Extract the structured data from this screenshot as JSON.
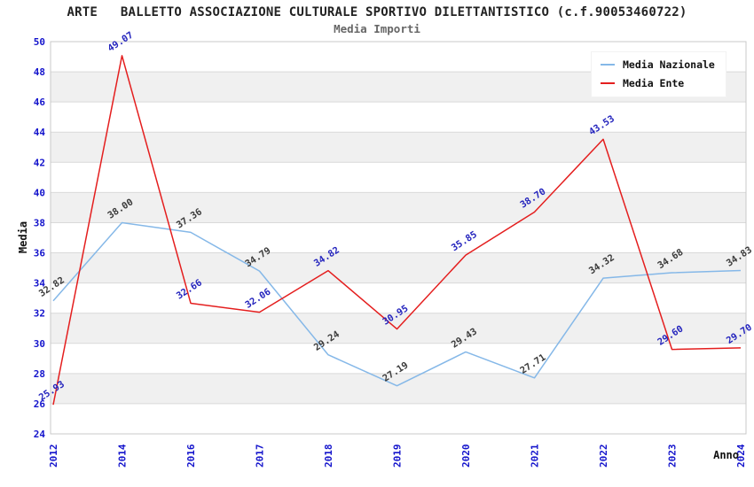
{
  "page": {
    "title": "ARTE   BALLETTO ASSOCIAZIONE CULTURALE SPORTIVO DILETTANTISTICO (c.f.90053460722)",
    "subtitle": "Media Importi"
  },
  "chart_data": {
    "type": "line",
    "title": "ARTE   BALLETTO ASSOCIAZIONE CULTURALE SPORTIVO DILETTANTISTICO (c.f.90053460722)",
    "subtitle": "Media Importi",
    "xlabel": "Anno",
    "ylabel": "Media",
    "ylim": [
      24,
      50
    ],
    "yticks": [
      24,
      26,
      28,
      30,
      32,
      34,
      36,
      38,
      40,
      42,
      44,
      46,
      48,
      50
    ],
    "categories": [
      "2012",
      "2014",
      "2016",
      "2017",
      "2018",
      "2019",
      "2020",
      "2021",
      "2022",
      "2023",
      "2024"
    ],
    "grid": "horizontal gridlines with alternating light-gray bands",
    "legend_position": "top-right",
    "series": [
      {
        "name": "Media Nazionale",
        "color": "#85b8e8",
        "label_color": "#3a3a3a",
        "values": [
          32.82,
          38.0,
          37.36,
          34.79,
          29.24,
          27.19,
          29.43,
          27.71,
          34.32,
          34.68,
          34.83
        ],
        "labels": [
          "32.82",
          "38.00",
          "37.36",
          "34.79",
          "29.24",
          "27.19",
          "29.43",
          "27.71",
          "34.32",
          "34.68",
          "34.83"
        ]
      },
      {
        "name": "Media Ente",
        "color": "#e41e1e",
        "label_color": "#2424bd",
        "values": [
          25.93,
          49.07,
          32.66,
          32.06,
          34.82,
          30.95,
          35.85,
          38.7,
          43.53,
          29.6,
          29.7
        ],
        "labels": [
          "25.93",
          "49.07",
          "32.66",
          "32.06",
          "34.82",
          "30.95",
          "35.85",
          "38.70",
          "43.53",
          "29.60",
          "29.70"
        ]
      }
    ],
    "colors": {
      "tick": "#1414cc",
      "band": "#f0f0f0",
      "grid": "#d9d9d9",
      "frame": "#c9c9c9"
    }
  }
}
